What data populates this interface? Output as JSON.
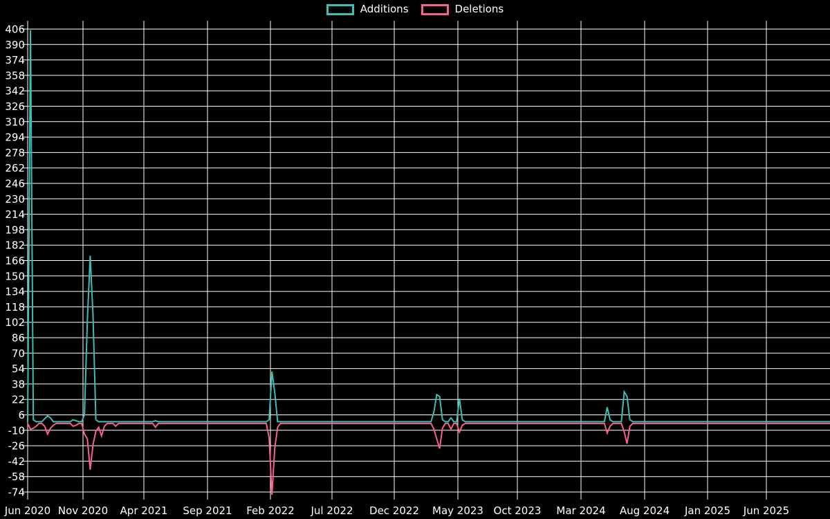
{
  "legend": {
    "items": [
      {
        "label": "Additions",
        "color": "#3cbeb4"
      },
      {
        "label": "Deletions",
        "color": "#f8618c"
      }
    ]
  },
  "colors": {
    "background": "#000000",
    "grid": "#ffffff",
    "text": "#ffffff",
    "additions": "#3cbeb4",
    "deletions": "#f8618c"
  },
  "chart_data": {
    "type": "line",
    "title": "",
    "xlabel": "",
    "ylabel": "",
    "grid": true,
    "legend_position": "top-center",
    "x_unit": "week",
    "n_weeks": 283,
    "x_axis": {
      "tick_labels": [
        "Jun 2020",
        "Nov 2020",
        "Apr 2021",
        "Sep 2021",
        "Feb 2022",
        "Jul 2022",
        "Dec 2022",
        "May 2023",
        "Oct 2023",
        "Mar 2024",
        "Aug 2024",
        "Jan 2025",
        "Jun 2025"
      ]
    },
    "y_axis": {
      "min": -74,
      "max": 406,
      "tick_step": 16,
      "tick_labels": [
        406,
        390,
        374,
        358,
        342,
        326,
        310,
        294,
        278,
        262,
        246,
        230,
        214,
        198,
        182,
        166,
        150,
        134,
        118,
        102,
        86,
        70,
        54,
        38,
        22,
        6,
        -10,
        -26,
        -42,
        -58,
        -74
      ]
    },
    "series": [
      {
        "name": "Additions",
        "color": "#3cbeb4",
        "baseline": 0,
        "points": [
          {
            "week": 1,
            "value": 406
          },
          {
            "week": 2,
            "value": 2
          },
          {
            "week": 6,
            "value": 3
          },
          {
            "week": 7,
            "value": 6
          },
          {
            "week": 8,
            "value": 4
          },
          {
            "week": 16,
            "value": 2
          },
          {
            "week": 17,
            "value": 1
          },
          {
            "week": 20,
            "value": 7
          },
          {
            "week": 21,
            "value": 105
          },
          {
            "week": 22,
            "value": 172
          },
          {
            "week": 23,
            "value": 110
          },
          {
            "week": 24,
            "value": 2
          },
          {
            "week": 45,
            "value": 1
          },
          {
            "week": 85,
            "value": 2
          },
          {
            "week": 86,
            "value": 52
          },
          {
            "week": 87,
            "value": 30
          },
          {
            "week": 143,
            "value": 10
          },
          {
            "week": 144,
            "value": 28
          },
          {
            "week": 145,
            "value": 26
          },
          {
            "week": 146,
            "value": 2
          },
          {
            "week": 149,
            "value": 4
          },
          {
            "week": 152,
            "value": 24
          },
          {
            "week": 153,
            "value": 2
          },
          {
            "week": 204,
            "value": 15
          },
          {
            "week": 205,
            "value": 2
          },
          {
            "week": 210,
            "value": 31
          },
          {
            "week": 211,
            "value": 26
          },
          {
            "week": 212,
            "value": 2
          }
        ]
      },
      {
        "name": "Deletions",
        "color": "#f8618c",
        "baseline": 0,
        "points": [
          {
            "week": 1,
            "value": -6
          },
          {
            "week": 2,
            "value": -5
          },
          {
            "week": 3,
            "value": -3
          },
          {
            "week": 6,
            "value": -3
          },
          {
            "week": 7,
            "value": -11
          },
          {
            "week": 8,
            "value": -5
          },
          {
            "week": 9,
            "value": -2
          },
          {
            "week": 16,
            "value": -3
          },
          {
            "week": 17,
            "value": -2
          },
          {
            "week": 20,
            "value": -11
          },
          {
            "week": 21,
            "value": -16
          },
          {
            "week": 22,
            "value": -48
          },
          {
            "week": 23,
            "value": -22
          },
          {
            "week": 24,
            "value": -8
          },
          {
            "week": 25,
            "value": -4
          },
          {
            "week": 26,
            "value": -13
          },
          {
            "week": 27,
            "value": -3
          },
          {
            "week": 31,
            "value": -3
          },
          {
            "week": 45,
            "value": -4
          },
          {
            "week": 85,
            "value": -15
          },
          {
            "week": 86,
            "value": -74
          },
          {
            "week": 87,
            "value": -25
          },
          {
            "week": 88,
            "value": -4
          },
          {
            "week": 143,
            "value": -6
          },
          {
            "week": 144,
            "value": -16
          },
          {
            "week": 145,
            "value": -26
          },
          {
            "week": 146,
            "value": -5
          },
          {
            "week": 149,
            "value": -6
          },
          {
            "week": 152,
            "value": -9
          },
          {
            "week": 153,
            "value": -2
          },
          {
            "week": 204,
            "value": -10
          },
          {
            "week": 205,
            "value": -3
          },
          {
            "week": 210,
            "value": -9
          },
          {
            "week": 211,
            "value": -21
          },
          {
            "week": 212,
            "value": -3
          }
        ]
      }
    ]
  }
}
